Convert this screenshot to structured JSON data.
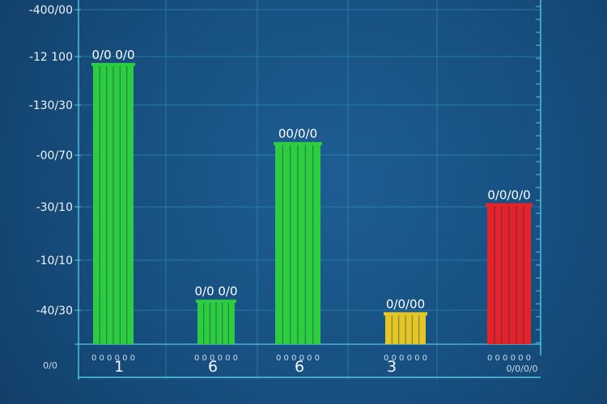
{
  "chart_data": {
    "type": "bar",
    "title": "",
    "xlabel": "",
    "ylabel": "",
    "categories": [
      "1",
      "6",
      "6",
      "3",
      ""
    ],
    "values": [
      0.885,
      0.134,
      0.634,
      0.094,
      0.44
    ],
    "ylim": [
      0,
      1
    ],
    "y_tick_labels": [
      "-40/30",
      "-10/10",
      "-30/10",
      "-00/70",
      "-130/30",
      "-12 100",
      "-400/00"
    ],
    "bar_labels": [
      "0/0 0/0",
      "0/0 0/0",
      "00/0/0",
      "0/0/00",
      "0/0/0/0"
    ],
    "base_labels": [
      "0 0 0 0 0 0",
      "0 0 0 0 0 0",
      "0 0 0 0 0 0",
      "0 0 0 0 0 0",
      "0 0 0 0 0 0"
    ],
    "corner_label_left": "0/0",
    "corner_label_right": "0/0/0/0",
    "bar_colors": [
      "#2ecc40",
      "#2ecc40",
      "#2ecc40",
      "#e3c628",
      "#e3242b"
    ],
    "grid": true,
    "legend": "none"
  }
}
